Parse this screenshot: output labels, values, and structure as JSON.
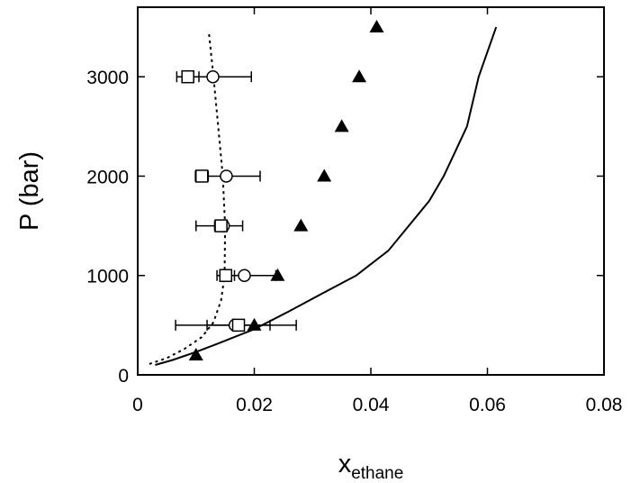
{
  "chart_data": {
    "type": "scatter",
    "title": "",
    "xlabel": "x",
    "xlabel_subscript": "ethane",
    "ylabel": "P (bar)",
    "xlim": [
      0,
      0.08
    ],
    "ylim": [
      0,
      3700
    ],
    "x_ticks": [
      0,
      0.02,
      0.04,
      0.06,
      0.08
    ],
    "x_tick_labels": [
      "0",
      "0.02",
      "0.04",
      "0.06",
      "0.08"
    ],
    "y_ticks": [
      0,
      1000,
      2000,
      3000
    ],
    "y_tick_labels": [
      "0",
      "1000",
      "2000",
      "3000"
    ],
    "grid": false,
    "series": [
      {
        "marker": "open-circle",
        "points": [
          {
            "x": 0.0129,
            "y": 3000,
            "xerr_lo": 0.0036,
            "xerr_hi": 0.0066
          },
          {
            "x": 0.0152,
            "y": 2000,
            "xerr_lo": 0.0035,
            "xerr_hi": 0.0058
          },
          {
            "x": 0.0147,
            "y": 1500,
            "xerr_lo": 0.0047,
            "xerr_hi": 0.0033
          },
          {
            "x": 0.0183,
            "y": 1000,
            "xerr_lo": 0.0035,
            "xerr_hi": 0.0054
          },
          {
            "x": 0.0167,
            "y": 500,
            "xerr_lo": 0.0102,
            "xerr_hi": 0.0105
          }
        ]
      },
      {
        "marker": "open-square",
        "points": [
          {
            "x": 0.0086,
            "y": 3000,
            "xerr_lo": 0.0019,
            "xerr_hi": 0.0019
          },
          {
            "x": 0.011,
            "y": 2000,
            "xerr_lo": 0.0011,
            "xerr_hi": 0.0011
          },
          {
            "x": 0.0143,
            "y": 1500,
            "xerr_lo": 0.0011,
            "xerr_hi": 0.0011
          },
          {
            "x": 0.0151,
            "y": 1000,
            "xerr_lo": 0.0015,
            "xerr_hi": 0.0015
          },
          {
            "x": 0.0173,
            "y": 500,
            "xerr_lo": 0.0054,
            "xerr_hi": 0.0054
          }
        ]
      },
      {
        "marker": "filled-triangle",
        "points": [
          {
            "x": 0.01,
            "y": 200
          },
          {
            "x": 0.02,
            "y": 500
          },
          {
            "x": 0.024,
            "y": 1000
          },
          {
            "x": 0.028,
            "y": 1500
          },
          {
            "x": 0.032,
            "y": 2000
          },
          {
            "x": 0.035,
            "y": 2500
          },
          {
            "x": 0.038,
            "y": 3000
          },
          {
            "x": 0.041,
            "y": 3500
          }
        ]
      },
      {
        "marker": "none",
        "line": "solid",
        "points": [
          {
            "x": 0.003,
            "y": 100
          },
          {
            "x": 0.006,
            "y": 150
          },
          {
            "x": 0.01,
            "y": 230
          },
          {
            "x": 0.014,
            "y": 320
          },
          {
            "x": 0.02,
            "y": 460
          },
          {
            "x": 0.026,
            "y": 640
          },
          {
            "x": 0.032,
            "y": 830
          },
          {
            "x": 0.0375,
            "y": 1000
          },
          {
            "x": 0.043,
            "y": 1250
          },
          {
            "x": 0.0465,
            "y": 1500
          },
          {
            "x": 0.05,
            "y": 1750
          },
          {
            "x": 0.0525,
            "y": 2000
          },
          {
            "x": 0.0545,
            "y": 2250
          },
          {
            "x": 0.0565,
            "y": 2500
          },
          {
            "x": 0.0585,
            "y": 3000
          },
          {
            "x": 0.06,
            "y": 3250
          },
          {
            "x": 0.0615,
            "y": 3500
          }
        ]
      },
      {
        "marker": "none",
        "line": "dotted",
        "points": [
          {
            "x": 0.002,
            "y": 110
          },
          {
            "x": 0.005,
            "y": 170
          },
          {
            "x": 0.008,
            "y": 260
          },
          {
            "x": 0.011,
            "y": 380
          },
          {
            "x": 0.013,
            "y": 530
          },
          {
            "x": 0.0143,
            "y": 750
          },
          {
            "x": 0.0149,
            "y": 1000
          },
          {
            "x": 0.015,
            "y": 1500
          },
          {
            "x": 0.0146,
            "y": 2000
          },
          {
            "x": 0.0138,
            "y": 2500
          },
          {
            "x": 0.013,
            "y": 3000
          },
          {
            "x": 0.0122,
            "y": 3450
          }
        ]
      }
    ]
  }
}
